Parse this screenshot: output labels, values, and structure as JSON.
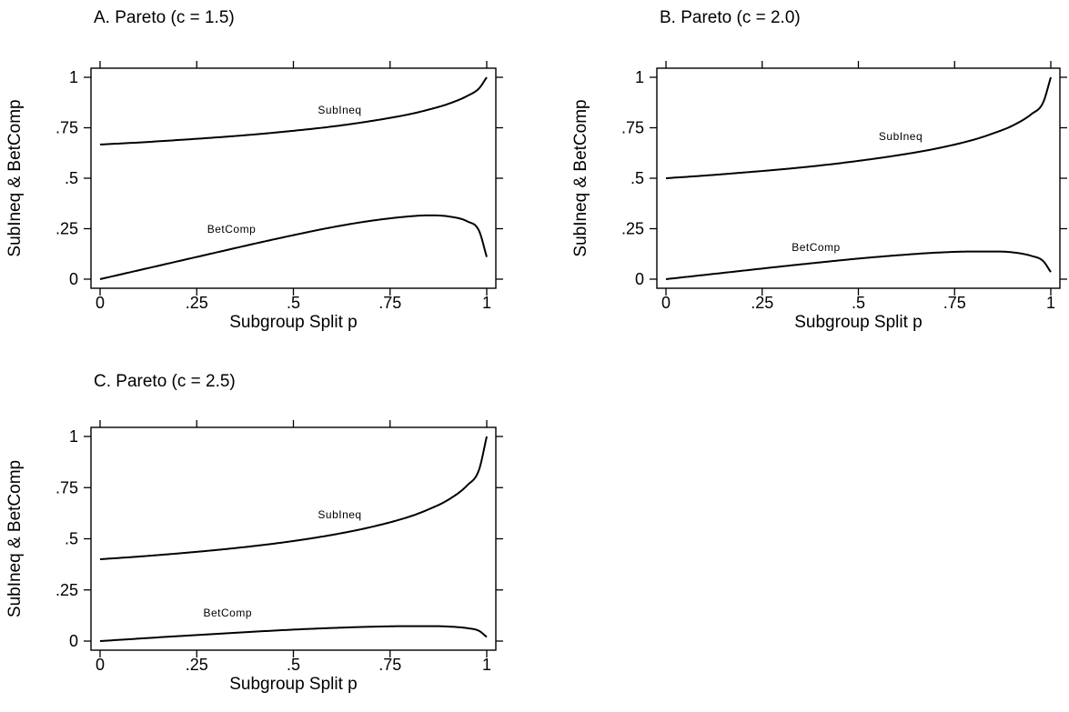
{
  "chart_data": [
    {
      "type": "line",
      "title": "A.  Pareto (c = 1.5)",
      "xlabel": "Subgroup Split p",
      "ylabel": "SubIneq & BetComp",
      "xlim": [
        0,
        1
      ],
      "ylim": [
        0,
        1
      ],
      "xticks": [
        0,
        0.25,
        0.5,
        0.75,
        1
      ],
      "xtick_labels": [
        "0",
        ".25",
        ".5",
        ".75",
        "1"
      ],
      "yticks": [
        0,
        0.25,
        0.5,
        0.75,
        1
      ],
      "ytick_labels": [
        "0",
        ".25",
        ".5",
        ".75",
        "1"
      ],
      "grid": false,
      "series": [
        {
          "name": "SubIneq",
          "x": [
            0,
            0.1,
            0.2,
            0.3,
            0.4,
            0.5,
            0.6,
            0.7,
            0.8,
            0.85,
            0.9,
            0.95,
            0.98,
            1.0
          ],
          "y": [
            0.667,
            0.677,
            0.689,
            0.702,
            0.717,
            0.735,
            0.756,
            0.783,
            0.817,
            0.84,
            0.868,
            0.908,
            0.945,
            1.0
          ]
        },
        {
          "name": "BetComp",
          "x": [
            0,
            0.1,
            0.2,
            0.3,
            0.4,
            0.5,
            0.6,
            0.7,
            0.8,
            0.85,
            0.9,
            0.95,
            0.98,
            1.0
          ],
          "y": [
            0.0,
            0.044,
            0.088,
            0.132,
            0.176,
            0.218,
            0.257,
            0.289,
            0.311,
            0.316,
            0.311,
            0.286,
            0.24,
            0.11
          ]
        }
      ]
    },
    {
      "type": "line",
      "title": "B.  Pareto (c = 2.0)",
      "xlabel": "Subgroup Split p",
      "ylabel": "SubIneq & BetComp",
      "xlim": [
        0,
        1
      ],
      "ylim": [
        0,
        1
      ],
      "xticks": [
        0,
        0.25,
        0.5,
        0.75,
        1
      ],
      "xtick_labels": [
        "0",
        ".25",
        ".5",
        ".75",
        "1"
      ],
      "yticks": [
        0,
        0.25,
        0.5,
        0.75,
        1
      ],
      "ytick_labels": [
        "0",
        ".25",
        ".5",
        ".75",
        "1"
      ],
      "grid": false,
      "series": [
        {
          "name": "SubIneq",
          "x": [
            0,
            0.1,
            0.2,
            0.3,
            0.4,
            0.5,
            0.6,
            0.7,
            0.8,
            0.85,
            0.9,
            0.95,
            0.98,
            1.0
          ],
          "y": [
            0.5,
            0.513,
            0.528,
            0.544,
            0.563,
            0.586,
            0.613,
            0.646,
            0.691,
            0.722,
            0.76,
            0.818,
            0.875,
            1.0
          ]
        },
        {
          "name": "BetComp",
          "x": [
            0,
            0.1,
            0.2,
            0.3,
            0.4,
            0.5,
            0.6,
            0.7,
            0.8,
            0.85,
            0.9,
            0.95,
            0.98,
            1.0
          ],
          "y": [
            0.0,
            0.021,
            0.042,
            0.063,
            0.083,
            0.102,
            0.118,
            0.131,
            0.137,
            0.137,
            0.133,
            0.115,
            0.09,
            0.035
          ]
        }
      ]
    },
    {
      "type": "line",
      "title": "C.  Pareto (c = 2.5)",
      "xlabel": "Subgroup Split p",
      "ylabel": "SubIneq & BetComp",
      "xlim": [
        0,
        1
      ],
      "ylim": [
        0,
        1
      ],
      "xticks": [
        0,
        0.25,
        0.5,
        0.75,
        1
      ],
      "xtick_labels": [
        "0",
        ".25",
        ".5",
        ".75",
        "1"
      ],
      "yticks": [
        0,
        0.25,
        0.5,
        0.75,
        1
      ],
      "ytick_labels": [
        "0",
        ".25",
        ".5",
        ".75",
        "1"
      ],
      "grid": false,
      "series": [
        {
          "name": "SubIneq",
          "x": [
            0,
            0.1,
            0.2,
            0.3,
            0.4,
            0.5,
            0.6,
            0.7,
            0.8,
            0.85,
            0.9,
            0.95,
            0.98,
            1.0
          ],
          "y": [
            0.4,
            0.413,
            0.428,
            0.445,
            0.465,
            0.489,
            0.519,
            0.557,
            0.608,
            0.644,
            0.69,
            0.762,
            0.837,
            1.0
          ]
        },
        {
          "name": "BetComp",
          "x": [
            0,
            0.1,
            0.2,
            0.3,
            0.4,
            0.5,
            0.6,
            0.7,
            0.8,
            0.85,
            0.9,
            0.95,
            0.98,
            1.0
          ],
          "y": [
            0.0,
            0.012,
            0.024,
            0.035,
            0.046,
            0.056,
            0.064,
            0.07,
            0.073,
            0.073,
            0.071,
            0.063,
            0.05,
            0.02
          ]
        }
      ]
    }
  ]
}
